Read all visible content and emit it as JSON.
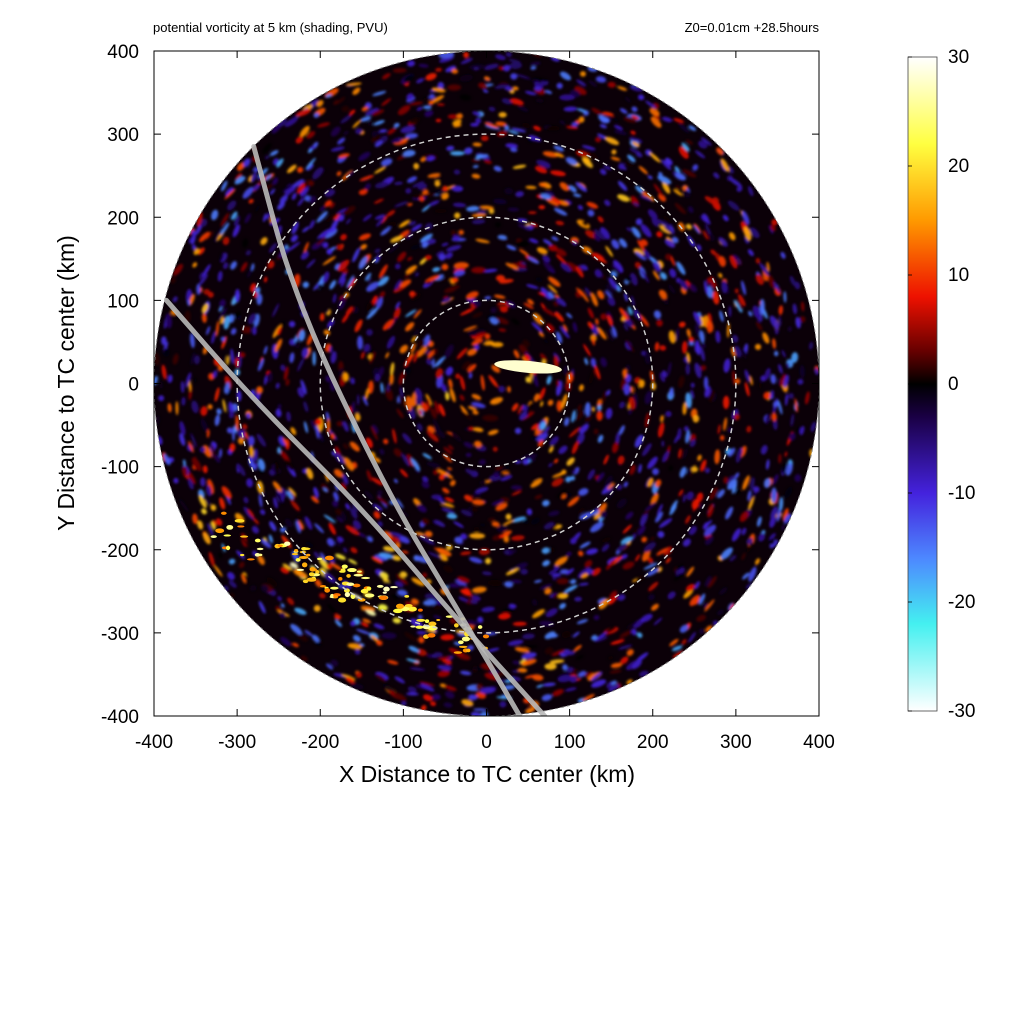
{
  "header": {
    "title": "potential vorticity at 5 km (shading, PVU)",
    "run_info": "Z0=0.01cm  +28.5hours"
  },
  "chart_data": {
    "type": "heatmap",
    "title": "potential vorticity at 5 km (shading, PVU)",
    "annotation": "Z0=0.01cm  +28.5hours",
    "xlabel": "X Distance to TC center (km)",
    "ylabel": "Y Distance to TC center (km)",
    "xlim": [
      -400,
      400
    ],
    "ylim": [
      -400,
      400
    ],
    "x_ticks": [
      -400,
      -300,
      -200,
      -100,
      0,
      100,
      200,
      300,
      400
    ],
    "y_ticks": [
      -400,
      -300,
      -200,
      -100,
      0,
      100,
      200,
      300,
      400
    ],
    "domain_radius_km": 400,
    "range_rings_km": [
      100,
      200,
      300
    ],
    "colorbar": {
      "min": -30,
      "max": 30,
      "ticks": [
        30,
        20,
        10,
        0,
        -10,
        -20,
        -30
      ],
      "stops": [
        {
          "value": 30,
          "color": "#ffffff"
        },
        {
          "value": 22,
          "color": "#ffff40"
        },
        {
          "value": 15,
          "color": "#ff9900"
        },
        {
          "value": 8,
          "color": "#ee1100"
        },
        {
          "value": 3,
          "color": "#660000"
        },
        {
          "value": 0,
          "color": "#000000"
        },
        {
          "value": -3,
          "color": "#1a0044"
        },
        {
          "value": -10,
          "color": "#4422dd"
        },
        {
          "value": -16,
          "color": "#4d88ff"
        },
        {
          "value": -22,
          "color": "#44f0f0"
        },
        {
          "value": -30,
          "color": "#ffffff"
        }
      ]
    },
    "track_lines": [
      {
        "points": [
          [
            -280,
            285
          ],
          [
            -230,
            100
          ],
          [
            -120,
            -130
          ],
          [
            -30,
            -280
          ],
          [
            40,
            -400
          ]
        ]
      },
      {
        "points": [
          [
            -385,
            100
          ],
          [
            -280,
            -20
          ],
          [
            -150,
            -150
          ],
          [
            -30,
            -290
          ],
          [
            70,
            -400
          ]
        ]
      }
    ],
    "features": {
      "intense_positive_band": {
        "center": [
          -150,
          -260
        ],
        "value": 25
      },
      "inner_core_maximum": {
        "center": [
          50,
          20
        ],
        "value": 28
      },
      "rainband_spiral": {
        "value": 12
      }
    }
  }
}
